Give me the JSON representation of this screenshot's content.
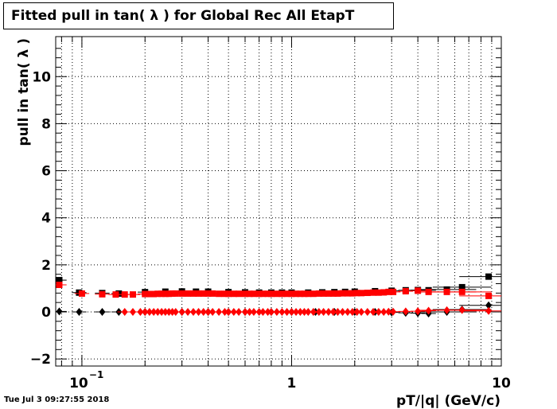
{
  "timestamp": "Tue Jul  3 09:27:55 2018",
  "chart_data": {
    "type": "scatter",
    "title": "Fitted pull in tan( λ ) for Global Rec All EtapT",
    "xlabel": "pT/|q| (GeV/c)",
    "ylabel": "pull in tan( λ )",
    "x_scale": "log",
    "xlim": [
      0.075,
      10
    ],
    "ylim": [
      -2.3,
      11.7
    ],
    "grid": true,
    "x_ticks": [
      {
        "value": 0.1,
        "label": "10",
        "exp": "−1"
      },
      {
        "value": 1,
        "label": "1",
        "exp": ""
      },
      {
        "value": 10,
        "label": "10",
        "exp": ""
      }
    ],
    "y_ticks": [
      {
        "value": -2,
        "label": "−2"
      },
      {
        "value": 0,
        "label": "0"
      },
      {
        "value": 2,
        "label": "2"
      },
      {
        "value": 4,
        "label": "4"
      },
      {
        "value": 6,
        "label": "6"
      },
      {
        "value": 8,
        "label": "8"
      },
      {
        "value": 10,
        "label": "10"
      }
    ],
    "series": [
      {
        "color": "#000000",
        "marker": "square",
        "x": [
          0.078,
          0.097,
          0.125,
          0.15,
          0.2,
          0.25,
          0.3,
          0.35,
          0.4,
          0.5,
          0.6,
          0.7,
          0.8,
          0.9,
          1.0,
          1.2,
          1.4,
          1.6,
          1.8,
          2.0,
          2.5,
          3.0,
          3.5,
          4.0,
          4.5,
          5.5,
          6.5,
          8.7
        ],
        "y": [
          1.35,
          0.82,
          0.8,
          0.78,
          0.84,
          0.86,
          0.87,
          0.86,
          0.86,
          0.84,
          0.83,
          0.82,
          0.82,
          0.82,
          0.82,
          0.82,
          0.83,
          0.84,
          0.85,
          0.86,
          0.88,
          0.9,
          0.92,
          0.93,
          0.92,
          0.95,
          1.05,
          1.5
        ]
      },
      {
        "color": "#000000",
        "marker": "diamond",
        "x": [
          0.078,
          0.097,
          0.125,
          0.15,
          0.2,
          0.3,
          0.4,
          0.5,
          0.6,
          0.8,
          1.0,
          1.3,
          1.6,
          2.0,
          2.5,
          3.0,
          3.5,
          4.0,
          4.5,
          5.5,
          6.5,
          8.7
        ],
        "y": [
          0.02,
          0.0,
          0.0,
          0.0,
          0.0,
          0.0,
          0.0,
          0.0,
          0.0,
          0.0,
          0.0,
          0.0,
          0.0,
          0.0,
          0.0,
          -0.02,
          -0.04,
          -0.05,
          -0.07,
          0.0,
          0.1,
          0.28
        ]
      },
      {
        "color": "#ff0000",
        "marker": "square",
        "x": [
          0.078,
          0.1,
          0.125,
          0.145,
          0.16,
          0.175,
          0.2,
          0.21,
          0.22,
          0.23,
          0.24,
          0.25,
          0.26,
          0.27,
          0.28,
          0.3,
          0.32,
          0.34,
          0.36,
          0.38,
          0.4,
          0.42,
          0.45,
          0.48,
          0.5,
          0.53,
          0.56,
          0.6,
          0.63,
          0.66,
          0.7,
          0.73,
          0.77,
          0.8,
          0.85,
          0.9,
          0.95,
          1.0,
          1.05,
          1.1,
          1.15,
          1.2,
          1.27,
          1.35,
          1.42,
          1.5,
          1.58,
          1.66,
          1.75,
          1.85,
          1.95,
          2.05,
          2.15,
          2.3,
          2.45,
          2.6,
          2.75,
          2.9,
          3.05,
          3.5,
          4.0,
          4.5,
          5.5,
          6.5,
          8.7
        ],
        "y": [
          1.15,
          0.78,
          0.75,
          0.74,
          0.74,
          0.74,
          0.76,
          0.76,
          0.76,
          0.77,
          0.77,
          0.77,
          0.77,
          0.78,
          0.78,
          0.78,
          0.78,
          0.78,
          0.78,
          0.78,
          0.78,
          0.78,
          0.77,
          0.77,
          0.77,
          0.77,
          0.77,
          0.77,
          0.77,
          0.77,
          0.77,
          0.77,
          0.77,
          0.77,
          0.77,
          0.77,
          0.77,
          0.77,
          0.77,
          0.77,
          0.77,
          0.77,
          0.77,
          0.78,
          0.78,
          0.78,
          0.78,
          0.78,
          0.79,
          0.79,
          0.79,
          0.8,
          0.8,
          0.81,
          0.82,
          0.82,
          0.83,
          0.85,
          0.85,
          0.88,
          0.9,
          0.85,
          0.85,
          0.85,
          0.68
        ]
      },
      {
        "color": "#ff0000",
        "marker": "diamond",
        "x": [
          0.16,
          0.175,
          0.19,
          0.2,
          0.21,
          0.22,
          0.23,
          0.24,
          0.25,
          0.26,
          0.27,
          0.28,
          0.3,
          0.32,
          0.34,
          0.36,
          0.38,
          0.4,
          0.42,
          0.45,
          0.48,
          0.5,
          0.53,
          0.56,
          0.6,
          0.63,
          0.66,
          0.7,
          0.73,
          0.77,
          0.8,
          0.85,
          0.9,
          0.95,
          1.0,
          1.05,
          1.1,
          1.15,
          1.2,
          1.27,
          1.35,
          1.42,
          1.5,
          1.58,
          1.66,
          1.75,
          1.85,
          1.95,
          2.05,
          2.15,
          2.3,
          2.45,
          2.6,
          2.75,
          2.9,
          3.05,
          3.5,
          4.0,
          4.5,
          5.5,
          6.5,
          8.7
        ],
        "y": [
          0.0,
          0.0,
          0.0,
          0.0,
          0.0,
          0.0,
          0.0,
          0.0,
          0.0,
          0.0,
          0.0,
          0.0,
          0.0,
          0.0,
          0.0,
          0.0,
          0.0,
          0.0,
          0.0,
          0.0,
          0.0,
          0.0,
          0.0,
          0.0,
          0.0,
          0.0,
          0.0,
          0.0,
          0.0,
          0.0,
          0.0,
          0.0,
          0.0,
          0.0,
          0.0,
          0.0,
          0.0,
          0.0,
          0.0,
          0.0,
          0.0,
          0.0,
          0.0,
          0.0,
          0.0,
          0.0,
          0.0,
          0.0,
          0.0,
          0.0,
          0.0,
          0.0,
          0.0,
          0.0,
          0.01,
          0.01,
          0.02,
          0.03,
          0.05,
          0.07,
          0.08,
          0.04
        ]
      }
    ]
  }
}
